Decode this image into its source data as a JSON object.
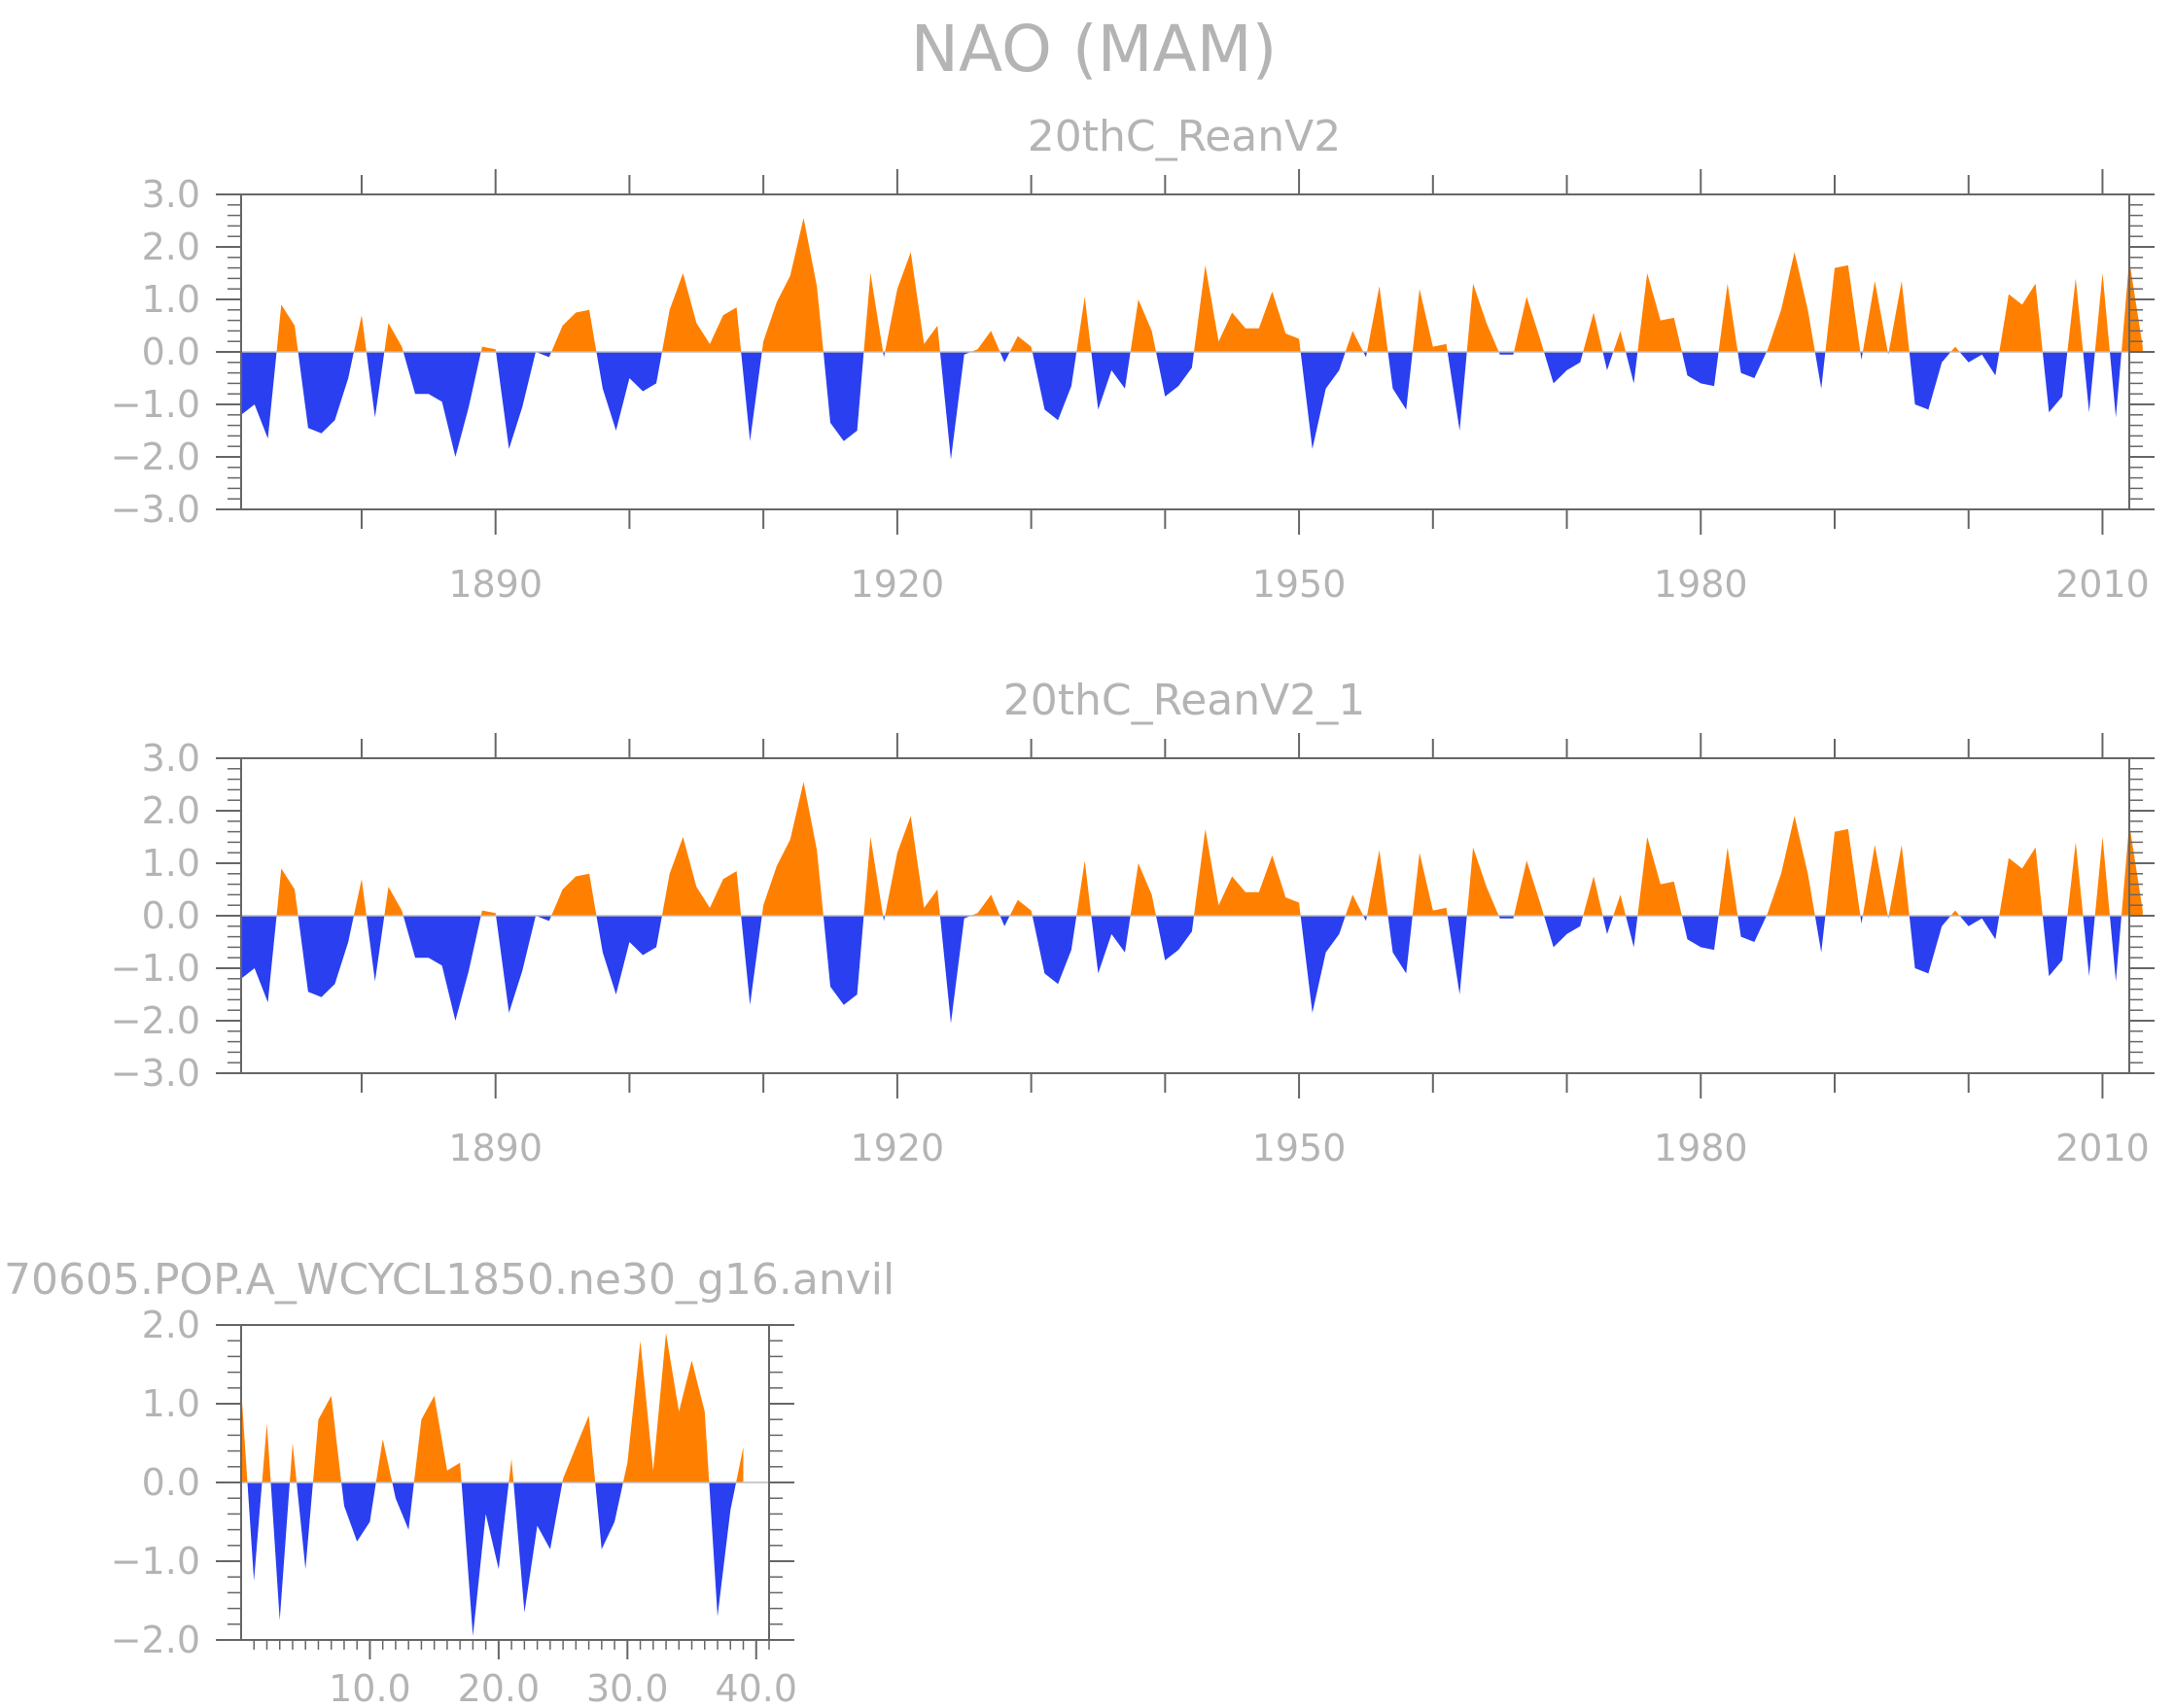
{
  "figure": {
    "title": "NAO (MAM)",
    "colors": {
      "positive": "#ff8000",
      "negative": "#2a3ff0",
      "axis": "#666666",
      "text": "#b4b4b4"
    }
  },
  "chart_data": [
    {
      "type": "area",
      "title": "20thC_ReanV2",
      "xlabel": "",
      "ylabel": "",
      "xlim": [
        1871,
        2012
      ],
      "ylim": [
        -3,
        3
      ],
      "xticks": [
        1890,
        1920,
        1950,
        1980,
        2010
      ],
      "xtick_labels": [
        "1890",
        "1920",
        "1950",
        "1980",
        "2010"
      ],
      "yticks": [
        -3,
        -2,
        -1,
        0,
        1,
        2,
        3
      ],
      "ytick_labels": [
        "−3.0",
        "−2.0",
        "−1.0",
        "0.0",
        "1.0",
        "2.0",
        "3.0"
      ],
      "x_start": 1871,
      "values": [
        -1.2,
        -1.0,
        -1.65,
        0.9,
        0.5,
        -1.45,
        -1.55,
        -1.3,
        -0.5,
        0.7,
        -1.25,
        0.55,
        0.1,
        -0.8,
        -0.8,
        -0.95,
        -2.0,
        -1.05,
        0.1,
        0.05,
        -1.85,
        -1.05,
        0.0,
        -0.1,
        0.5,
        0.75,
        0.8,
        -0.7,
        -1.5,
        -0.5,
        -0.75,
        -0.6,
        0.8,
        1.5,
        0.55,
        0.15,
        0.7,
        0.85,
        -1.7,
        0.2,
        0.95,
        1.45,
        2.55,
        1.25,
        -1.35,
        -1.7,
        -1.5,
        1.5,
        -0.1,
        1.2,
        1.9,
        0.15,
        0.5,
        -2.05,
        -0.05,
        0.05,
        0.4,
        -0.2,
        0.3,
        0.1,
        -1.1,
        -1.3,
        -0.65,
        1.05,
        -1.1,
        -0.35,
        -0.7,
        1.0,
        0.4,
        -0.85,
        -0.65,
        -0.3,
        1.65,
        0.2,
        0.75,
        0.45,
        0.45,
        1.15,
        0.35,
        0.25,
        -1.85,
        -0.7,
        -0.35,
        0.4,
        -0.1,
        1.25,
        -0.7,
        -1.1,
        1.2,
        0.1,
        0.15,
        -1.5,
        1.3,
        0.55,
        -0.05,
        -0.05,
        1.05,
        0.25,
        -0.6,
        -0.35,
        -0.2,
        0.75,
        -0.35,
        0.4,
        -0.6,
        1.5,
        0.6,
        0.65,
        -0.45,
        -0.6,
        -0.65,
        1.3,
        -0.4,
        -0.5,
        0.05,
        0.8,
        1.9,
        0.8,
        -0.7,
        1.6,
        1.65,
        -0.15,
        1.35,
        -0.05,
        1.35,
        -1.0,
        -1.1,
        -0.2,
        0.1,
        -0.2,
        -0.05,
        -0.45,
        1.1,
        0.9,
        1.3,
        -1.15,
        -0.85,
        1.4,
        -1.15,
        1.5,
        -1.25,
        1.75,
        0.1
      ]
    },
    {
      "type": "area",
      "title": "20thC_ReanV2_1",
      "xlabel": "",
      "ylabel": "",
      "xlim": [
        1871,
        2012
      ],
      "ylim": [
        -3,
        3
      ],
      "xticks": [
        1890,
        1920,
        1950,
        1980,
        2010
      ],
      "xtick_labels": [
        "1890",
        "1920",
        "1950",
        "1980",
        "2010"
      ],
      "yticks": [
        -3,
        -2,
        -1,
        0,
        1,
        2,
        3
      ],
      "ytick_labels": [
        "−3.0",
        "−2.0",
        "−1.0",
        "0.0",
        "1.0",
        "2.0",
        "3.0"
      ],
      "x_start": 1871,
      "values": [
        -1.2,
        -1.0,
        -1.65,
        0.9,
        0.5,
        -1.45,
        -1.55,
        -1.3,
        -0.5,
        0.7,
        -1.25,
        0.55,
        0.1,
        -0.8,
        -0.8,
        -0.95,
        -2.0,
        -1.05,
        0.1,
        0.05,
        -1.85,
        -1.05,
        0.0,
        -0.1,
        0.5,
        0.75,
        0.8,
        -0.7,
        -1.5,
        -0.5,
        -0.75,
        -0.6,
        0.8,
        1.5,
        0.55,
        0.15,
        0.7,
        0.85,
        -1.7,
        0.2,
        0.95,
        1.45,
        2.55,
        1.25,
        -1.35,
        -1.7,
        -1.5,
        1.5,
        -0.1,
        1.2,
        1.9,
        0.15,
        0.5,
        -2.05,
        -0.05,
        0.05,
        0.4,
        -0.2,
        0.3,
        0.1,
        -1.1,
        -1.3,
        -0.65,
        1.05,
        -1.1,
        -0.35,
        -0.7,
        1.0,
        0.4,
        -0.85,
        -0.65,
        -0.3,
        1.65,
        0.2,
        0.75,
        0.45,
        0.45,
        1.15,
        0.35,
        0.25,
        -1.85,
        -0.7,
        -0.35,
        0.4,
        -0.1,
        1.25,
        -0.7,
        -1.1,
        1.2,
        0.1,
        0.15,
        -1.5,
        1.3,
        0.55,
        -0.05,
        -0.05,
        1.05,
        0.25,
        -0.6,
        -0.35,
        -0.2,
        0.75,
        -0.35,
        0.4,
        -0.6,
        1.5,
        0.6,
        0.65,
        -0.45,
        -0.6,
        -0.65,
        1.3,
        -0.4,
        -0.5,
        0.05,
        0.8,
        1.9,
        0.8,
        -0.7,
        1.6,
        1.65,
        -0.15,
        1.35,
        -0.05,
        1.35,
        -1.0,
        -1.1,
        -0.2,
        0.1,
        -0.2,
        -0.05,
        -0.45,
        1.1,
        0.9,
        1.3,
        -1.15,
        -0.85,
        1.4,
        -1.15,
        1.5,
        -1.25,
        1.75,
        0.1
      ]
    },
    {
      "type": "area",
      "title": "70605.POP.A_WCYCL1850.ne30_g16.anvil",
      "xlabel": "",
      "ylabel": "",
      "xlim": [
        0,
        41
      ],
      "ylim": [
        -2,
        2
      ],
      "xticks": [
        10,
        20,
        30,
        40
      ],
      "xtick_labels": [
        "10.0",
        "20.0",
        "30.0",
        "40.0"
      ],
      "yticks": [
        -2,
        -1,
        0,
        1,
        2
      ],
      "ytick_labels": [
        "−2.0",
        "−1.0",
        "0.0",
        "1.0",
        "2.0"
      ],
      "x_start": 0,
      "values": [
        1.2,
        -1.25,
        0.75,
        -1.75,
        0.5,
        -1.1,
        0.8,
        1.1,
        -0.3,
        -0.75,
        -0.5,
        0.55,
        -0.2,
        -0.6,
        0.8,
        1.1,
        0.15,
        0.25,
        -1.95,
        -0.4,
        -1.1,
        0.3,
        -1.65,
        -0.55,
        -0.85,
        0.05,
        0.45,
        0.85,
        -0.85,
        -0.5,
        0.25,
        1.8,
        0.15,
        1.9,
        0.9,
        1.55,
        0.9,
        -1.7,
        -0.35,
        0.45
      ]
    }
  ]
}
